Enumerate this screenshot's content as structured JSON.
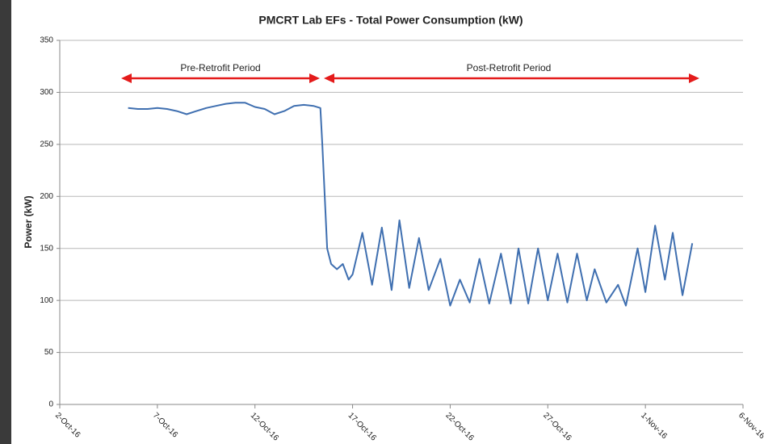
{
  "chart_data": {
    "type": "line",
    "title": "PMCRT Lab EFs - Total Power Consumption (kW)",
    "y_label": "Power (kW)",
    "annotations": [
      "Pre-Retrofit  Period",
      "Post-Retrofit  Period"
    ],
    "color": "#3f6fb0",
    "grid": true,
    "xlim": [
      0,
      35
    ],
    "xticks": [
      {
        "value": 0,
        "label": "2-Oct-16"
      },
      {
        "value": 5,
        "label": "7-Oct-16"
      },
      {
        "value": 10,
        "label": "12-Oct-16"
      },
      {
        "value": 15,
        "label": "17-Oct-16"
      },
      {
        "value": 20,
        "label": "22-Oct-16"
      },
      {
        "value": 25,
        "label": "27-Oct-16"
      },
      {
        "value": 30,
        "label": "1-Nov-16"
      },
      {
        "value": 35,
        "label": "6-Nov-16"
      }
    ],
    "ylim": [
      0,
      350
    ],
    "yticks": [
      0,
      50,
      100,
      150,
      200,
      250,
      300,
      350
    ],
    "x": [
      3.5,
      4,
      4.5,
      5,
      5.5,
      6,
      6.5,
      7,
      7.5,
      8,
      8.5,
      9,
      9.5,
      10,
      10.5,
      11,
      11.5,
      12,
      12.5,
      13,
      13.35,
      13.45,
      13.6,
      13.7,
      13.9,
      14.2,
      14.5,
      14.8,
      15,
      15.5,
      16,
      16.5,
      17,
      17.4,
      17.9,
      18.4,
      18.9,
      19.5,
      20,
      20.5,
      21,
      21.5,
      22,
      22.6,
      23.1,
      23.5,
      24,
      24.5,
      25,
      25.5,
      26,
      26.5,
      27,
      27.4,
      28,
      28.6,
      29,
      29.6,
      30,
      30.5,
      31,
      31.4,
      31.9,
      32.4
    ],
    "values": [
      285,
      284,
      284,
      285,
      284,
      282,
      279,
      282,
      285,
      287,
      289,
      290,
      290,
      286,
      284,
      279,
      282,
      287,
      288,
      287,
      285,
      250,
      190,
      150,
      135,
      130,
      135,
      120,
      125,
      165,
      115,
      170,
      110,
      177,
      112,
      160,
      110,
      140,
      95,
      120,
      98,
      140,
      97,
      145,
      97,
      150,
      97,
      150,
      100,
      145,
      98,
      145,
      100,
      130,
      98,
      115,
      95,
      150,
      108,
      172,
      120,
      165,
      105,
      155
    ]
  }
}
